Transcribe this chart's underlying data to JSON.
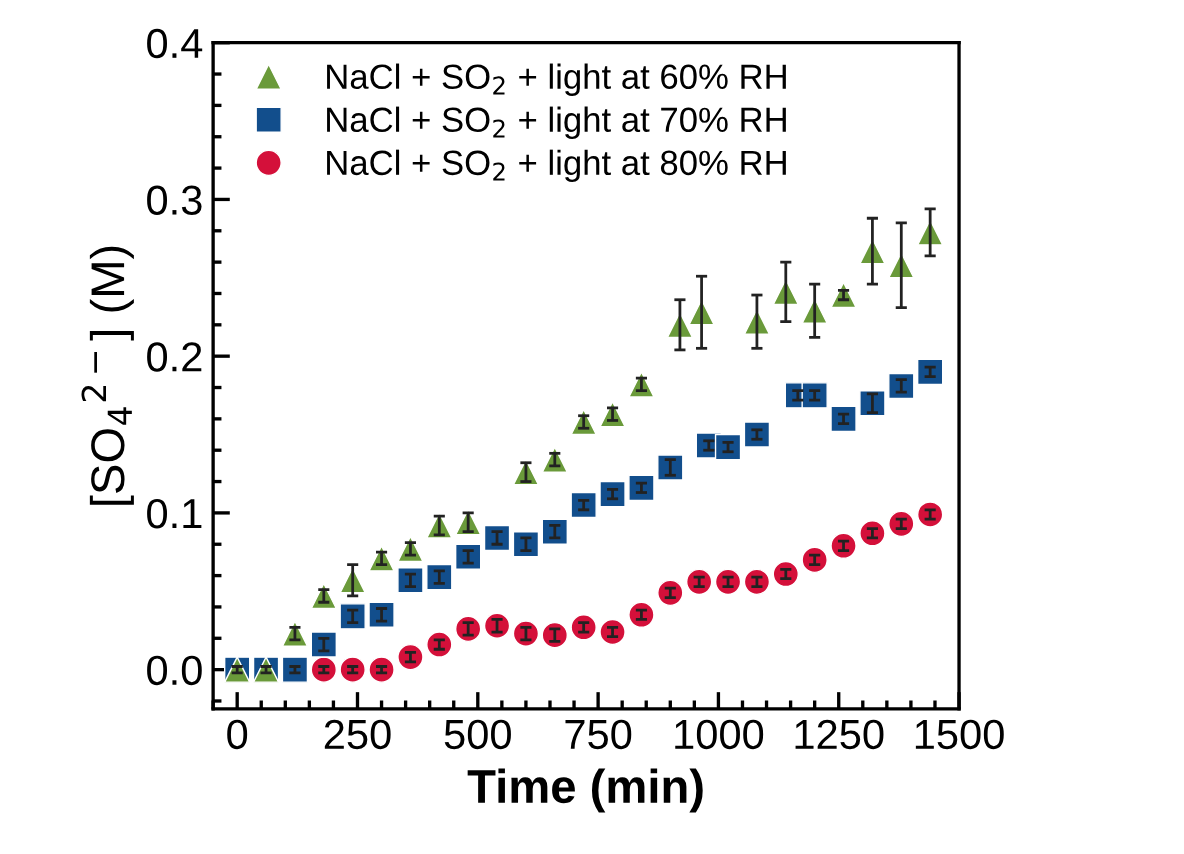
{
  "chart_data": {
    "type": "scatter",
    "xlabel": "Time (min)",
    "ylabel": "[SO$_{4}$$^{2−}$] (M)",
    "xlim": [
      -50,
      1500
    ],
    "xticks": [
      0,
      250,
      500,
      750,
      1000,
      1250,
      1500
    ],
    "ylim": [
      -0.025,
      0.4
    ],
    "yticks": [
      {
        "value": 0,
        "label": "0.0"
      },
      0.1,
      0.2,
      0.3,
      0.4
    ],
    "legend": "top left",
    "grid": false,
    "series": [
      {
        "name": "NaCl + SO$_{2}$ + light at 60% RH",
        "color": "#6a9a3a",
        "marker": "triangle",
        "x": [
          0,
          60,
          120,
          180,
          240,
          300,
          360,
          420,
          480,
          600,
          660,
          720,
          780,
          840,
          920,
          965,
          1080,
          1140,
          1200,
          1260,
          1320,
          1380,
          1440
        ],
        "values": [
          0,
          0,
          0.023,
          0.047,
          0.057,
          0.071,
          0.077,
          0.092,
          0.094,
          0.126,
          0.134,
          0.158,
          0.163,
          0.182,
          0.22,
          0.228,
          0.222,
          0.241,
          0.229,
          0.239,
          0.267,
          0.258,
          0.279
        ],
        "errors": [
          0.002,
          0.002,
          0.004,
          0.004,
          0.01,
          0.004,
          0.004,
          0.006,
          0.006,
          0.006,
          0.004,
          0.004,
          0.004,
          0.004,
          0.016,
          0.023,
          0.017,
          0.019,
          0.017,
          0.003,
          0.021,
          0.027,
          0.015
        ]
      },
      {
        "name": "NaCl + SO$_{2}$ + light at 70% RH",
        "color": "#124e8c",
        "marker": "square",
        "x": [
          0,
          60,
          120,
          180,
          240,
          300,
          360,
          420,
          480,
          540,
          600,
          660,
          720,
          780,
          840,
          900,
          980,
          1020,
          1080,
          1165,
          1200,
          1260,
          1320,
          1380,
          1440
        ],
        "values": [
          0,
          0,
          0,
          0.016,
          0.034,
          0.035,
          0.057,
          0.059,
          0.072,
          0.084,
          0.08,
          0.088,
          0.105,
          0.112,
          0.116,
          0.129,
          0.143,
          0.142,
          0.15,
          0.175,
          0.175,
          0.16,
          0.17,
          0.181,
          0.19
        ],
        "errors": [
          0.002,
          0.002,
          0.002,
          0.004,
          0.004,
          0.004,
          0.004,
          0.004,
          0.004,
          0.004,
          0.004,
          0.004,
          0.003,
          0.003,
          0.003,
          0.005,
          0.003,
          0.003,
          0.003,
          0.003,
          0.003,
          0.003,
          0.006,
          0.004,
          0.003
        ]
      },
      {
        "name": "NaCl + SO$_{2}$ + light at 80% RH",
        "color": "#d4103a",
        "marker": "circle",
        "x": [
          180,
          240,
          300,
          360,
          420,
          480,
          540,
          600,
          660,
          720,
          780,
          840,
          900,
          960,
          1020,
          1080,
          1140,
          1200,
          1260,
          1320,
          1380,
          1440
        ],
        "values": [
          0,
          0,
          0,
          0.008,
          0.016,
          0.026,
          0.028,
          0.023,
          0.022,
          0.027,
          0.024,
          0.035,
          0.049,
          0.056,
          0.056,
          0.056,
          0.061,
          0.07,
          0.079,
          0.087,
          0.093,
          0.099
        ],
        "errors": [
          0.002,
          0.002,
          0.002,
          0.003,
          0.003,
          0.004,
          0.004,
          0.004,
          0.004,
          0.003,
          0.003,
          0.003,
          0.003,
          0.003,
          0.003,
          0.003,
          0.003,
          0.003,
          0.003,
          0.003,
          0.003,
          0.003
        ]
      }
    ]
  }
}
